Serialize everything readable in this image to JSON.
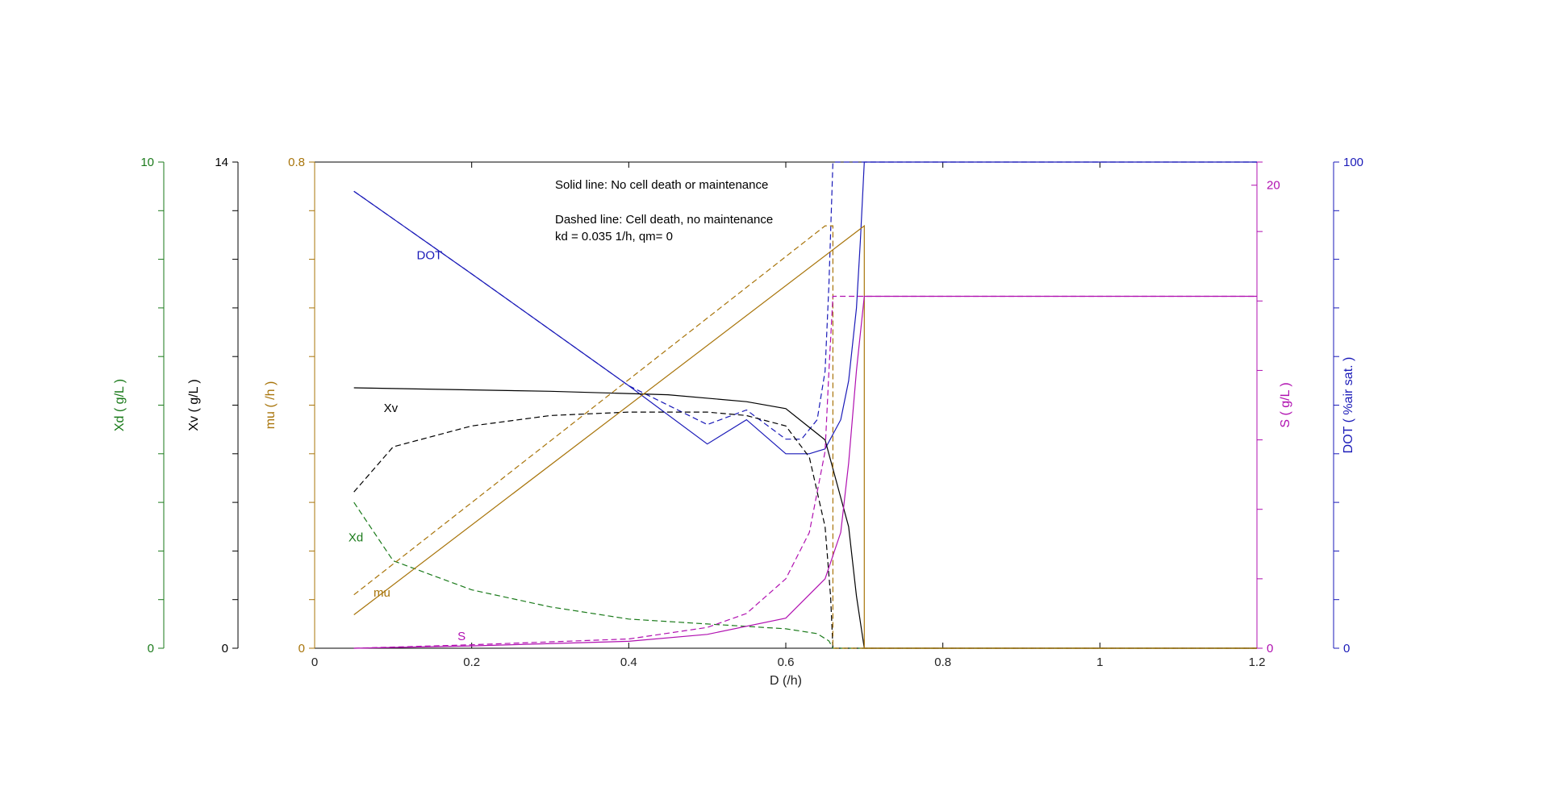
{
  "chart_data": {
    "type": "line",
    "xlabel": "D (/h)",
    "xlim": [
      0,
      1.2
    ],
    "xticks": [
      0,
      0.2,
      0.4,
      0.6,
      0.8,
      1,
      1.2
    ],
    "x_tick_labels": [
      "0",
      "0.2",
      "0.4",
      "0.6",
      "0.8",
      "1",
      "1.2"
    ],
    "grid": false,
    "axes": [
      {
        "id": "xd",
        "label": "Xd ( g/L )",
        "ylim": [
          0,
          10
        ],
        "tick_labels": [
          "0",
          "10"
        ],
        "color": "#1a7a1a",
        "side": "left"
      },
      {
        "id": "xv",
        "label": "Xv ( g/L )",
        "ylim": [
          0,
          14
        ],
        "tick_labels": [
          "0",
          "14"
        ],
        "color": "#000000",
        "side": "left"
      },
      {
        "id": "mu",
        "label": "mu ( /h )",
        "ylim": [
          0,
          0.8
        ],
        "tick_labels": [
          "0",
          "0.8"
        ],
        "color": "#a8740a",
        "side": "left"
      },
      {
        "id": "s",
        "label": "S ( g/L )",
        "ylim": [
          0,
          21
        ],
        "tick_labels": [
          "0",
          "20"
        ],
        "tick_values": [
          0,
          20
        ],
        "color": "#b010b0",
        "side": "right"
      },
      {
        "id": "dot",
        "label": "DOT ( %air sat. )",
        "ylim": [
          0,
          100
        ],
        "tick_labels": [
          "0",
          "100"
        ],
        "color": "#1a1ab8",
        "side": "right"
      }
    ],
    "annotations": {
      "line1": "Solid line: No cell death or maintenance",
      "line2": "Dashed line: Cell death, no maintenance",
      "line3": "kd = 0.035 1/h, qm= 0"
    },
    "curve_labels": {
      "dot": "DOT",
      "xv": "Xv",
      "xd": "Xd",
      "mu": "mu",
      "s": "S"
    },
    "series": [
      {
        "axis": "dot",
        "style": "solid",
        "color": "#1a1ab8",
        "x": [
          0.05,
          0.2,
          0.4,
          0.5,
          0.55,
          0.6,
          0.63,
          0.65,
          0.67,
          0.68,
          0.69,
          0.695,
          0.7,
          1.2
        ],
        "y": [
          94,
          77,
          54,
          42,
          47,
          40,
          40,
          41,
          47,
          55,
          70,
          84,
          100,
          100
        ]
      },
      {
        "axis": "dot",
        "style": "dashed",
        "color": "#1a1ab8",
        "x": [
          0.05,
          0.2,
          0.4,
          0.5,
          0.55,
          0.6,
          0.62,
          0.64,
          0.65,
          0.655,
          0.66,
          1.2
        ],
        "y": [
          94,
          77,
          54,
          46,
          49,
          43,
          43,
          47,
          57,
          75,
          100,
          100
        ]
      },
      {
        "axis": "xv",
        "style": "solid",
        "color": "#000000",
        "x": [
          0.05,
          0.3,
          0.45,
          0.55,
          0.6,
          0.65,
          0.68,
          0.69,
          0.7,
          1.2
        ],
        "y": [
          7.5,
          7.4,
          7.3,
          7.1,
          6.9,
          6.0,
          3.5,
          1.5,
          0,
          0
        ],
        "label_at": [
          0.1,
          6.9
        ]
      },
      {
        "axis": "xv",
        "style": "dashed",
        "color": "#000000",
        "x": [
          0.05,
          0.1,
          0.2,
          0.3,
          0.4,
          0.5,
          0.55,
          0.6,
          0.63,
          0.65,
          0.657,
          0.66,
          1.2
        ],
        "y": [
          4.5,
          5.8,
          6.4,
          6.7,
          6.8,
          6.8,
          6.7,
          6.4,
          5.5,
          3.5,
          1.5,
          0,
          0
        ]
      },
      {
        "axis": "xd",
        "style": "dashed",
        "color": "#1a7a1a",
        "x": [
          0.05,
          0.1,
          0.2,
          0.3,
          0.4,
          0.5,
          0.6,
          0.64,
          0.655,
          0.66,
          1.2
        ],
        "y": [
          3.0,
          1.8,
          1.2,
          0.85,
          0.6,
          0.5,
          0.4,
          0.3,
          0.15,
          0,
          0
        ],
        "label_at": [
          0.055,
          2.25
        ]
      },
      {
        "axis": "mu",
        "style": "solid",
        "color": "#a8740a",
        "x": [
          0.05,
          0.7,
          0.7,
          1.2
        ],
        "y": [
          0.055,
          0.695,
          0,
          0
        ],
        "label_at": [
          0.08,
          0.09
        ]
      },
      {
        "axis": "mu",
        "style": "dashed",
        "color": "#a8740a",
        "x": [
          0.05,
          0.65,
          0.66,
          0.66,
          1.2
        ],
        "y": [
          0.088,
          0.695,
          0.695,
          0,
          0
        ]
      },
      {
        "axis": "s",
        "style": "solid",
        "color": "#b010b0",
        "x": [
          0.05,
          0.2,
          0.4,
          0.5,
          0.6,
          0.65,
          0.67,
          0.68,
          0.69,
          0.7,
          1.2
        ],
        "y": [
          0,
          0.1,
          0.3,
          0.6,
          1.3,
          3.0,
          5.0,
          8.0,
          12.0,
          15.2,
          15.2
        ],
        "label_at": [
          0.18,
          0.3
        ]
      },
      {
        "axis": "s",
        "style": "dashed",
        "color": "#b010b0",
        "x": [
          0.05,
          0.2,
          0.4,
          0.5,
          0.55,
          0.6,
          0.63,
          0.65,
          0.655,
          0.66,
          1.2
        ],
        "y": [
          0,
          0.15,
          0.4,
          0.9,
          1.5,
          3.0,
          5.0,
          8.5,
          12.0,
          15.2,
          15.2
        ]
      }
    ]
  }
}
